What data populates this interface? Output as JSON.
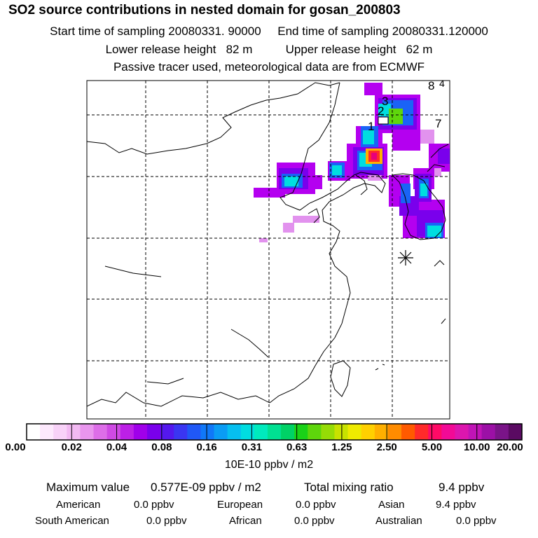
{
  "header": {
    "title": "SO2 source contributions in nested domain for gosan_200803",
    "sampling_line": "Start time of sampling 20080331. 90000     End time of sampling 20080331.120000",
    "height_line": "Lower release height   82 m          Upper release height   62 m",
    "tracer_line": "Passive tracer used, meteorological data are from ECMWF"
  },
  "map": {
    "region_labels": [
      "8",
      "4",
      "3",
      "2",
      "1",
      "7"
    ]
  },
  "colorbar": {
    "colors": [
      "#ffffff",
      "#fde9fd",
      "#f8d2f8",
      "#f2b9f2",
      "#e996ee",
      "#dd6ee8",
      "#cf4ae4",
      "#bc20e6",
      "#a000ea",
      "#7a00ec",
      "#5418ee",
      "#3a36f2",
      "#2058f6",
      "#1078f8",
      "#0a9cf4",
      "#06bff0",
      "#00dde0",
      "#00eabd",
      "#00e092",
      "#00d266",
      "#19d218",
      "#5ed60c",
      "#96dc06",
      "#c8e200",
      "#eeea00",
      "#ffd000",
      "#ffb000",
      "#ff8c00",
      "#ff5a00",
      "#ff2a2a",
      "#ff0a66",
      "#f20a96",
      "#dc16ae",
      "#c014b6",
      "#9c10a6",
      "#7a1488",
      "#5a0a62"
    ],
    "ticks": [
      "0.00",
      "0.02",
      "0.04",
      "0.08",
      "0.16",
      "0.31",
      "0.63",
      "1.25",
      "2.50",
      "5.00",
      "10.00",
      "20.00"
    ],
    "unit": "10E-10 ppbv / m2"
  },
  "summary": {
    "max_label": "Maximum value",
    "max_value": "0.577E-09 ppbv / m2",
    "total_label": "Total mixing ratio",
    "total_value": "9.4 ppbv",
    "regions": [
      {
        "name": "American",
        "value": "0.0 ppbv"
      },
      {
        "name": "European",
        "value": "0.0 ppbv"
      },
      {
        "name": "Asian",
        "value": "9.4 ppbv"
      },
      {
        "name": "South American",
        "value": "0.0 ppbv"
      },
      {
        "name": "African",
        "value": "0.0 ppbv"
      },
      {
        "name": "Australian",
        "value": "0.0 ppbv"
      }
    ]
  }
}
